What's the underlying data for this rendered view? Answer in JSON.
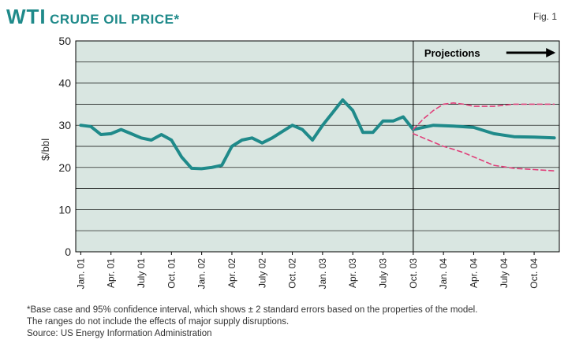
{
  "header": {
    "title_main": "WTI",
    "title_rest": "CRUDE OIL PRICE*",
    "fig_label": "Fig. 1"
  },
  "chart_data": {
    "type": "line",
    "title": "WTI CRUDE OIL PRICE*",
    "ylabel": "$/bbl",
    "xlabel": "",
    "ylim": [
      0,
      50
    ],
    "yticks": [
      0,
      10,
      20,
      30,
      40,
      50
    ],
    "grid": true,
    "projection_label": "Projections",
    "categories": [
      "Jan. 01",
      "Apr. 01",
      "July 01",
      "Oct. 01",
      "Jan. 02",
      "Apr. 02",
      "July 02",
      "Oct. 02",
      "Jan. 03",
      "Apr. 03",
      "July 03",
      "Oct. 03",
      "Jan. 04",
      "Apr. 04",
      "July 04",
      "Oct. 04"
    ],
    "projection_start": 33,
    "series": [
      {
        "name": "WTI price",
        "color": "#1f8a8a",
        "x": [
          0,
          1,
          2,
          3,
          4,
          5,
          6,
          7,
          8,
          9,
          10,
          11,
          12,
          13,
          14,
          15,
          16,
          17,
          18,
          19,
          20,
          21,
          22,
          23,
          24,
          25,
          26,
          27,
          28,
          29,
          30,
          31,
          32,
          33
        ],
        "values": [
          30,
          29.7,
          27.8,
          28,
          29,
          28,
          27,
          26.5,
          27.8,
          26.5,
          22.5,
          19.8,
          19.7,
          20,
          20.5,
          25,
          26.5,
          27,
          25.8,
          27,
          28.5,
          30,
          29,
          26.5,
          30,
          33,
          36,
          33.5,
          28.3,
          28.3,
          31,
          31,
          32,
          29
        ]
      },
      {
        "name": "Base case projection",
        "color": "#1f8a8a",
        "x": [
          33,
          35,
          37,
          39,
          41,
          43,
          45,
          47
        ],
        "values": [
          29,
          30,
          29.8,
          29.5,
          28,
          27.3,
          27.2,
          27
        ]
      },
      {
        "name": "Upper 95% confidence",
        "color": "#e0407a",
        "dashed": true,
        "x": [
          33,
          34,
          35,
          36,
          37,
          38,
          39,
          41,
          43,
          45,
          47
        ],
        "values": [
          29,
          31.5,
          33.5,
          35,
          35.3,
          35,
          34.5,
          34.5,
          35,
          35,
          35
        ]
      },
      {
        "name": "Lower 95% confidence",
        "color": "#e0407a",
        "dashed": true,
        "x": [
          33,
          34,
          35,
          36,
          37,
          38,
          39,
          41,
          43,
          45,
          47
        ],
        "values": [
          28,
          27,
          26,
          25,
          24.3,
          23.5,
          22.5,
          20.5,
          19.8,
          19.5,
          19.2
        ]
      }
    ]
  },
  "footnotes": {
    "line1": "*Base case and 95% confidence interval, which shows ± 2 standard errors based on the properties of the model.",
    "line2": "The ranges do not include the effects of major supply disruptions.",
    "line3": "Source: US Energy Information Administration"
  }
}
